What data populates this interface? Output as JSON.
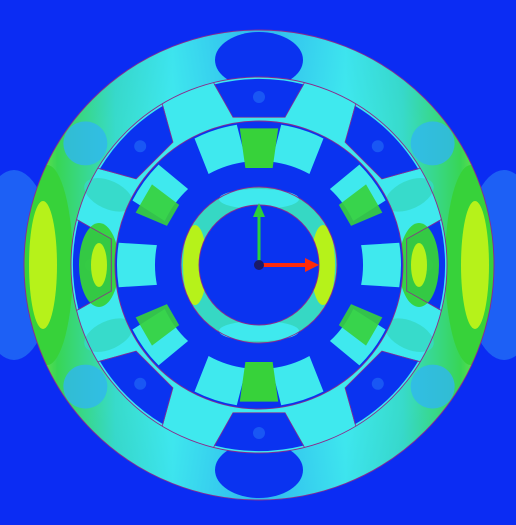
{
  "image": {
    "kind": "finite-element field plot of an electric machine cross-section (no text visible)",
    "colors": {
      "background": "#0b2cf3",
      "deep_blue": "#0a33f0",
      "blue": "#1f66f5",
      "sky": "#2fb7ef",
      "cyan": "#3fe9ee",
      "aqua": "#36d8c4",
      "green": "#37d23a",
      "yellow_green": "#b6f21a",
      "outline": "#8c2a8b",
      "axis_x": "#ff2a0a",
      "axis_y": "#2bd03a"
    },
    "icons": {
      "x_axis_arrow": "red-arrow-icon",
      "y_axis_arrow": "green-arrow-icon",
      "origin": "origin-dot-icon"
    }
  }
}
